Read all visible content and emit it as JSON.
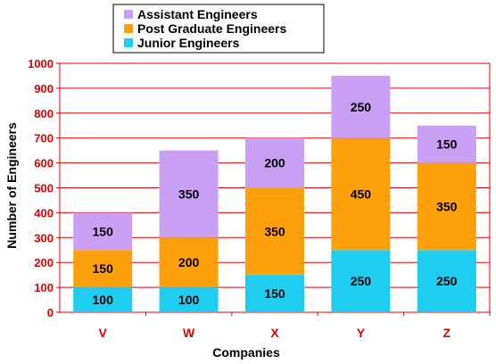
{
  "chart_data": {
    "type": "bar",
    "stacked": true,
    "categories": [
      "V",
      "W",
      "X",
      "Y",
      "Z"
    ],
    "series": [
      {
        "name": "Junior Engineers",
        "color": "#1ecdf0",
        "values": [
          100,
          100,
          150,
          250,
          250
        ]
      },
      {
        "name": "Post Graduate Engineers",
        "color": "#fca00c",
        "values": [
          150,
          200,
          350,
          450,
          350
        ]
      },
      {
        "name": "Assistant Engineers",
        "color": "#c9a0f4",
        "values": [
          150,
          350,
          200,
          250,
          150
        ]
      }
    ],
    "legend_order": [
      "Assistant Engineers",
      "Post Graduate Engineers",
      "Junior Engineers"
    ],
    "xlabel": "Companies",
    "ylabel": "Number of Engineers",
    "ylim": [
      0,
      1000
    ],
    "yticks": [
      0,
      100,
      200,
      300,
      400,
      500,
      600,
      700,
      800,
      900,
      1000
    ],
    "grid": true,
    "grid_color": "#e00000",
    "legend_position": "top"
  }
}
